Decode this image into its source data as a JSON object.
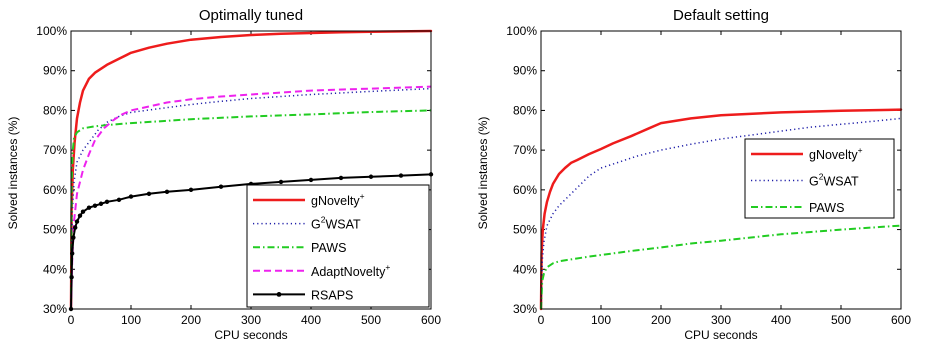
{
  "chart_data": [
    {
      "type": "line",
      "title": "Optimally tuned",
      "xlabel": "CPU seconds",
      "ylabel": "Solved instances (%)",
      "xlim": [
        0,
        600
      ],
      "ylim": [
        30,
        100
      ],
      "xticks": [
        0,
        100,
        200,
        300,
        400,
        500,
        600
      ],
      "yticks": [
        30,
        40,
        50,
        60,
        70,
        80,
        90,
        100
      ],
      "ytick_suffix": "%",
      "grid": false,
      "legend_position": "bottom-right",
      "series": [
        {
          "name": "gNovelty",
          "name_sup": "+",
          "color": "#ee1c1c",
          "style": "solid",
          "width": 2.5,
          "marker": "none",
          "x": [
            0,
            1,
            3,
            6,
            10,
            15,
            20,
            30,
            40,
            60,
            80,
            100,
            130,
            160,
            200,
            250,
            300,
            350,
            400,
            450,
            500,
            550,
            600
          ],
          "y": [
            30,
            55,
            65,
            72,
            78,
            82,
            85,
            88,
            89.5,
            91.5,
            93,
            94.5,
            95.8,
            96.8,
            97.8,
            98.5,
            99,
            99.3,
            99.5,
            99.7,
            99.8,
            99.9,
            100
          ]
        },
        {
          "name": "G",
          "name_sup": "2",
          "name_tail": "WSAT",
          "color": "#1e1ea8",
          "style": "dotted",
          "width": 1.5,
          "marker": "none",
          "x": [
            0,
            2,
            5,
            10,
            20,
            30,
            45,
            60,
            80,
            100,
            150,
            200,
            250,
            300,
            400,
            500,
            600
          ],
          "y": [
            30,
            54,
            62,
            67,
            70,
            72,
            75,
            77,
            78.5,
            79.5,
            80.5,
            81.5,
            82.3,
            83,
            84,
            84.8,
            85.5
          ]
        },
        {
          "name": "PAWS",
          "color": "#22cc22",
          "style": "dashdot",
          "width": 2,
          "marker": "none",
          "x": [
            0,
            1,
            3,
            5,
            10,
            20,
            40,
            60,
            100,
            150,
            200,
            300,
            400,
            500,
            600
          ],
          "y": [
            30,
            62,
            70,
            73,
            74.5,
            75.5,
            76,
            76.3,
            76.8,
            77.3,
            77.8,
            78.5,
            79,
            79.6,
            80
          ]
        },
        {
          "name": "AdaptNovelty",
          "name_sup": "+",
          "color": "#ee22ee",
          "style": "dashed",
          "width": 2,
          "marker": "none",
          "x": [
            0,
            2,
            5,
            10,
            20,
            30,
            40,
            55,
            70,
            85,
            100,
            130,
            160,
            200,
            250,
            300,
            400,
            500,
            600
          ],
          "y": [
            30,
            42,
            52,
            59,
            65,
            69,
            72.5,
            75.5,
            77.5,
            79,
            80,
            81,
            82,
            82.8,
            83.5,
            84,
            85,
            85.5,
            86
          ]
        },
        {
          "name": "RSAPS",
          "color": "#000000",
          "style": "solid",
          "width": 2,
          "marker": "dot",
          "x": [
            0,
            1,
            2,
            4,
            7,
            10,
            15,
            20,
            30,
            40,
            50,
            60,
            80,
            100,
            130,
            160,
            200,
            250,
            300,
            350,
            400,
            450,
            500,
            550,
            600
          ],
          "y": [
            30,
            38,
            44,
            48,
            50.5,
            52,
            53.5,
            54.5,
            55.5,
            56,
            56.5,
            57,
            57.5,
            58.3,
            59,
            59.5,
            60,
            60.8,
            61.5,
            62,
            62.5,
            63,
            63.3,
            63.6,
            63.9
          ]
        }
      ]
    },
    {
      "type": "line",
      "title": "Default setting",
      "xlabel": "CPU seconds",
      "ylabel": "Solved instances (%)",
      "xlim": [
        0,
        600
      ],
      "ylim": [
        30,
        100
      ],
      "xticks": [
        0,
        100,
        200,
        300,
        400,
        500,
        600
      ],
      "yticks": [
        30,
        40,
        50,
        60,
        70,
        80,
        90,
        100
      ],
      "ytick_suffix": "%",
      "grid": false,
      "legend_position": "right",
      "series": [
        {
          "name": "gNovelty",
          "name_sup": "+",
          "color": "#ee1c1c",
          "style": "solid",
          "width": 2.5,
          "marker": "none",
          "x": [
            0,
            1,
            3,
            6,
            10,
            15,
            20,
            30,
            40,
            50,
            60,
            80,
            100,
            120,
            150,
            180,
            200,
            250,
            300,
            400,
            500,
            600
          ],
          "y": [
            30,
            44,
            50,
            54,
            57,
            59.5,
            61.5,
            64,
            65.5,
            66.8,
            67.5,
            69,
            70.3,
            71.7,
            73.5,
            75.5,
            76.8,
            78,
            78.8,
            79.5,
            79.9,
            80.2
          ]
        },
        {
          "name": "G",
          "name_sup": "2",
          "name_tail": "WSAT",
          "color": "#1e1ea8",
          "style": "dotted",
          "width": 1.5,
          "marker": "none",
          "x": [
            0,
            2,
            5,
            10,
            20,
            30,
            40,
            60,
            80,
            100,
            130,
            160,
            200,
            250,
            300,
            350,
            400,
            450,
            500,
            550,
            600
          ],
          "y": [
            30,
            42,
            47,
            51,
            54,
            56,
            57.5,
            60.5,
            63.5,
            65.5,
            67,
            68.5,
            70,
            71.5,
            72.8,
            73.8,
            74.8,
            75.8,
            76.5,
            77.2,
            78
          ]
        },
        {
          "name": "PAWS",
          "color": "#22cc22",
          "style": "dashdot",
          "width": 2,
          "marker": "none",
          "x": [
            0,
            2,
            5,
            10,
            20,
            30,
            50,
            80,
            100,
            150,
            200,
            250,
            300,
            350,
            400,
            450,
            500,
            550,
            600
          ],
          "y": [
            30,
            37,
            39,
            40.5,
            41.5,
            42,
            42.5,
            43.2,
            43.6,
            44.6,
            45.5,
            46.5,
            47.2,
            48,
            48.8,
            49.4,
            50,
            50.5,
            51
          ]
        }
      ]
    }
  ]
}
